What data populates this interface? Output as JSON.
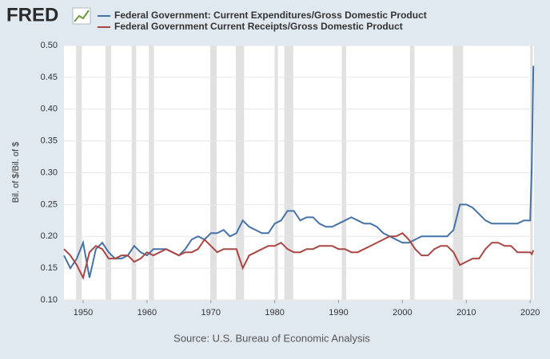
{
  "chart_data": {
    "type": "line",
    "logo": "FRED",
    "y_label": "Bil. of $/Bil. of $",
    "source": "Source: U.S. Bureau of Economic Analysis",
    "x": [
      1947,
      1948,
      1949,
      1950,
      1951,
      1952,
      1953,
      1954,
      1955,
      1956,
      1957,
      1958,
      1959,
      1960,
      1961,
      1962,
      1963,
      1964,
      1965,
      1966,
      1967,
      1968,
      1969,
      1970,
      1971,
      1972,
      1973,
      1974,
      1975,
      1976,
      1977,
      1978,
      1979,
      1980,
      1981,
      1982,
      1983,
      1984,
      1985,
      1986,
      1987,
      1988,
      1989,
      1990,
      1991,
      1992,
      1993,
      1994,
      1995,
      1996,
      1997,
      1998,
      1999,
      2000,
      2001,
      2002,
      2003,
      2004,
      2005,
      2006,
      2007,
      2008,
      2009,
      2010,
      2011,
      2012,
      2013,
      2014,
      2015,
      2016,
      2017,
      2018,
      2019,
      2020,
      2020.25,
      2020.5
    ],
    "series": [
      {
        "name": "Federal Government: Current Expenditures/Gross Domestic Product",
        "color": "#4572a7",
        "values": [
          0.17,
          0.15,
          0.165,
          0.19,
          0.135,
          0.18,
          0.19,
          0.175,
          0.165,
          0.165,
          0.17,
          0.185,
          0.175,
          0.17,
          0.18,
          0.18,
          0.18,
          0.175,
          0.17,
          0.18,
          0.195,
          0.2,
          0.195,
          0.205,
          0.205,
          0.21,
          0.2,
          0.205,
          0.225,
          0.215,
          0.21,
          0.205,
          0.205,
          0.22,
          0.225,
          0.24,
          0.24,
          0.225,
          0.23,
          0.23,
          0.22,
          0.215,
          0.215,
          0.22,
          0.225,
          0.23,
          0.225,
          0.22,
          0.22,
          0.215,
          0.205,
          0.2,
          0.195,
          0.19,
          0.19,
          0.195,
          0.2,
          0.2,
          0.2,
          0.2,
          0.2,
          0.21,
          0.25,
          0.25,
          0.245,
          0.235,
          0.225,
          0.22,
          0.22,
          0.22,
          0.22,
          0.22,
          0.225,
          0.225,
          0.31,
          0.468
        ]
      },
      {
        "name": "Federal Government Current Receipts/Gross Domestic Product",
        "color": "#aa4643",
        "values": [
          0.18,
          0.17,
          0.155,
          0.135,
          0.175,
          0.185,
          0.18,
          0.165,
          0.165,
          0.17,
          0.17,
          0.16,
          0.165,
          0.175,
          0.17,
          0.175,
          0.18,
          0.175,
          0.17,
          0.175,
          0.175,
          0.18,
          0.195,
          0.185,
          0.175,
          0.18,
          0.18,
          0.18,
          0.15,
          0.17,
          0.175,
          0.18,
          0.185,
          0.185,
          0.19,
          0.18,
          0.175,
          0.175,
          0.18,
          0.18,
          0.185,
          0.185,
          0.185,
          0.18,
          0.18,
          0.175,
          0.175,
          0.18,
          0.185,
          0.19,
          0.195,
          0.2,
          0.2,
          0.205,
          0.195,
          0.18,
          0.17,
          0.17,
          0.18,
          0.185,
          0.185,
          0.175,
          0.155,
          0.16,
          0.165,
          0.165,
          0.18,
          0.19,
          0.19,
          0.185,
          0.185,
          0.175,
          0.175,
          0.175,
          0.172,
          0.178
        ]
      }
    ],
    "recessions": [
      [
        1948.9,
        1949.8
      ],
      [
        1953.5,
        1954.4
      ],
      [
        1957.6,
        1958.3
      ],
      [
        1960.3,
        1961.1
      ],
      [
        1969.9,
        1970.9
      ],
      [
        1973.9,
        1975.2
      ],
      [
        1980.0,
        1980.5
      ],
      [
        1981.5,
        1982.9
      ],
      [
        1990.5,
        1991.2
      ],
      [
        2001.2,
        2001.9
      ],
      [
        2007.9,
        2009.5
      ],
      [
        2020.0,
        2020.4
      ]
    ],
    "recession_color": "#e1e1e1",
    "xlim": [
      1947,
      2020.6
    ],
    "xticks": [
      1950,
      1960,
      1970,
      1980,
      1990,
      2000,
      2010,
      2020
    ],
    "ylim": [
      0.1,
      0.5
    ],
    "yticks": [
      {
        "value": 0.1,
        "label": "0.10"
      },
      0.15,
      {
        "value": 0.2,
        "label": "0.20"
      },
      0.25,
      {
        "value": 0.3,
        "label": "0.30"
      },
      0.35,
      {
        "value": 0.4,
        "label": "0.40"
      },
      0.45,
      {
        "value": 0.5,
        "label": "0.50"
      }
    ],
    "grid": true
  }
}
